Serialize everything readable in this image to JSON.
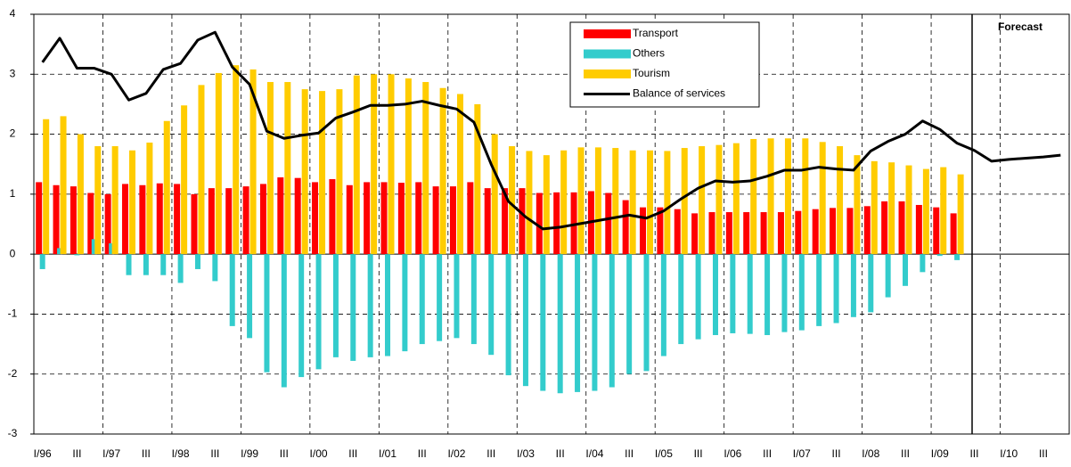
{
  "chart_data": {
    "type": "bar",
    "categories": [
      "I/96",
      null,
      "III",
      null,
      "I/97",
      null,
      "III",
      null,
      "I/98",
      null,
      "III",
      null,
      "I/99",
      null,
      "III",
      null,
      "I/00",
      null,
      "III",
      null,
      "I/01",
      null,
      "III",
      null,
      "I/02",
      null,
      "III",
      null,
      "I/03",
      null,
      "III",
      null,
      "I/04",
      null,
      "III",
      null,
      "I/05",
      null,
      "III",
      null,
      "I/06",
      null,
      "III",
      null,
      "I/07",
      null,
      "III",
      null,
      "I/08",
      null,
      "III",
      null,
      "I/09",
      null,
      "III",
      null,
      "I/10",
      null,
      "III",
      null
    ],
    "series": [
      {
        "name": "Transport",
        "color": "#ff0000",
        "type": "bar",
        "values": [
          1.2,
          1.15,
          1.13,
          1.02,
          1.0,
          1.17,
          1.15,
          1.18,
          1.17,
          1.0,
          1.1,
          1.1,
          1.13,
          1.17,
          1.28,
          1.27,
          1.2,
          1.25,
          1.15,
          1.2,
          1.2,
          1.19,
          1.2,
          1.13,
          1.13,
          1.2,
          1.1,
          1.1,
          1.1,
          1.02,
          1.03,
          1.03,
          1.05,
          1.02,
          0.9,
          0.78,
          0.78,
          0.75,
          0.68,
          0.7,
          0.7,
          0.7,
          0.7,
          0.7,
          0.72,
          0.75,
          0.77,
          0.77,
          0.8,
          0.88,
          0.88,
          0.82,
          0.78,
          0.68,
          null,
          null,
          null,
          null,
          null,
          null
        ]
      },
      {
        "name": "Others",
        "color": "#33cccc",
        "type": "bar",
        "values": [
          -0.25,
          0.1,
          -0.02,
          0.25,
          0.18,
          -0.35,
          -0.35,
          -0.35,
          -0.48,
          -0.25,
          -0.45,
          -1.2,
          -1.4,
          -1.97,
          -2.22,
          -2.05,
          -1.92,
          -1.72,
          -1.78,
          -1.72,
          -1.7,
          -1.62,
          -1.5,
          -1.45,
          -1.4,
          -1.5,
          -1.68,
          -2.02,
          -2.2,
          -2.28,
          -2.32,
          -2.3,
          -2.28,
          -2.22,
          -2.0,
          -1.95,
          -1.7,
          -1.5,
          -1.42,
          -1.35,
          -1.32,
          -1.33,
          -1.35,
          -1.3,
          -1.27,
          -1.2,
          -1.15,
          -1.05,
          -0.97,
          -0.72,
          -0.53,
          -0.3,
          -0.03,
          -0.1,
          null,
          null,
          null,
          null,
          null,
          null
        ]
      },
      {
        "name": "Tourism",
        "color": "#ffcc00",
        "type": "bar",
        "values": [
          2.25,
          2.3,
          2.0,
          1.8,
          1.8,
          1.73,
          1.86,
          2.22,
          2.48,
          2.82,
          3.02,
          3.15,
          3.08,
          2.87,
          2.87,
          2.75,
          2.72,
          2.75,
          2.98,
          3.0,
          3.0,
          2.93,
          2.87,
          2.77,
          2.67,
          2.5,
          2.0,
          1.8,
          1.72,
          1.65,
          1.73,
          1.78,
          1.78,
          1.77,
          1.73,
          1.73,
          1.72,
          1.77,
          1.8,
          1.82,
          1.85,
          1.92,
          1.93,
          1.93,
          1.93,
          1.87,
          1.8,
          1.65,
          1.55,
          1.53,
          1.48,
          1.42,
          1.45,
          1.33,
          null,
          null,
          null,
          null,
          null,
          null
        ]
      },
      {
        "name": "Balance of services",
        "color": "#000000",
        "type": "line",
        "values": [
          3.2,
          3.6,
          3.1,
          3.1,
          3.0,
          2.57,
          2.68,
          3.08,
          3.18,
          3.57,
          3.7,
          3.12,
          2.83,
          2.05,
          1.93,
          1.98,
          2.02,
          2.27,
          2.37,
          2.48,
          2.48,
          2.5,
          2.55,
          2.48,
          2.42,
          2.2,
          1.5,
          0.88,
          0.62,
          0.42,
          0.45,
          0.5,
          0.55,
          0.6,
          0.65,
          0.6,
          0.72,
          0.92,
          1.1,
          1.22,
          1.2,
          1.22,
          1.3,
          1.4,
          1.4,
          1.45,
          1.42,
          1.4,
          1.72,
          1.88,
          2.0,
          2.22,
          2.08,
          1.85,
          1.73,
          1.55,
          1.58,
          1.6,
          1.62,
          1.65
        ]
      }
    ],
    "annotation": "Forecast",
    "ylim": [
      -3,
      4
    ],
    "yticks": [
      -3,
      -2,
      -1,
      0,
      1,
      2,
      3,
      4
    ],
    "grid": true
  }
}
